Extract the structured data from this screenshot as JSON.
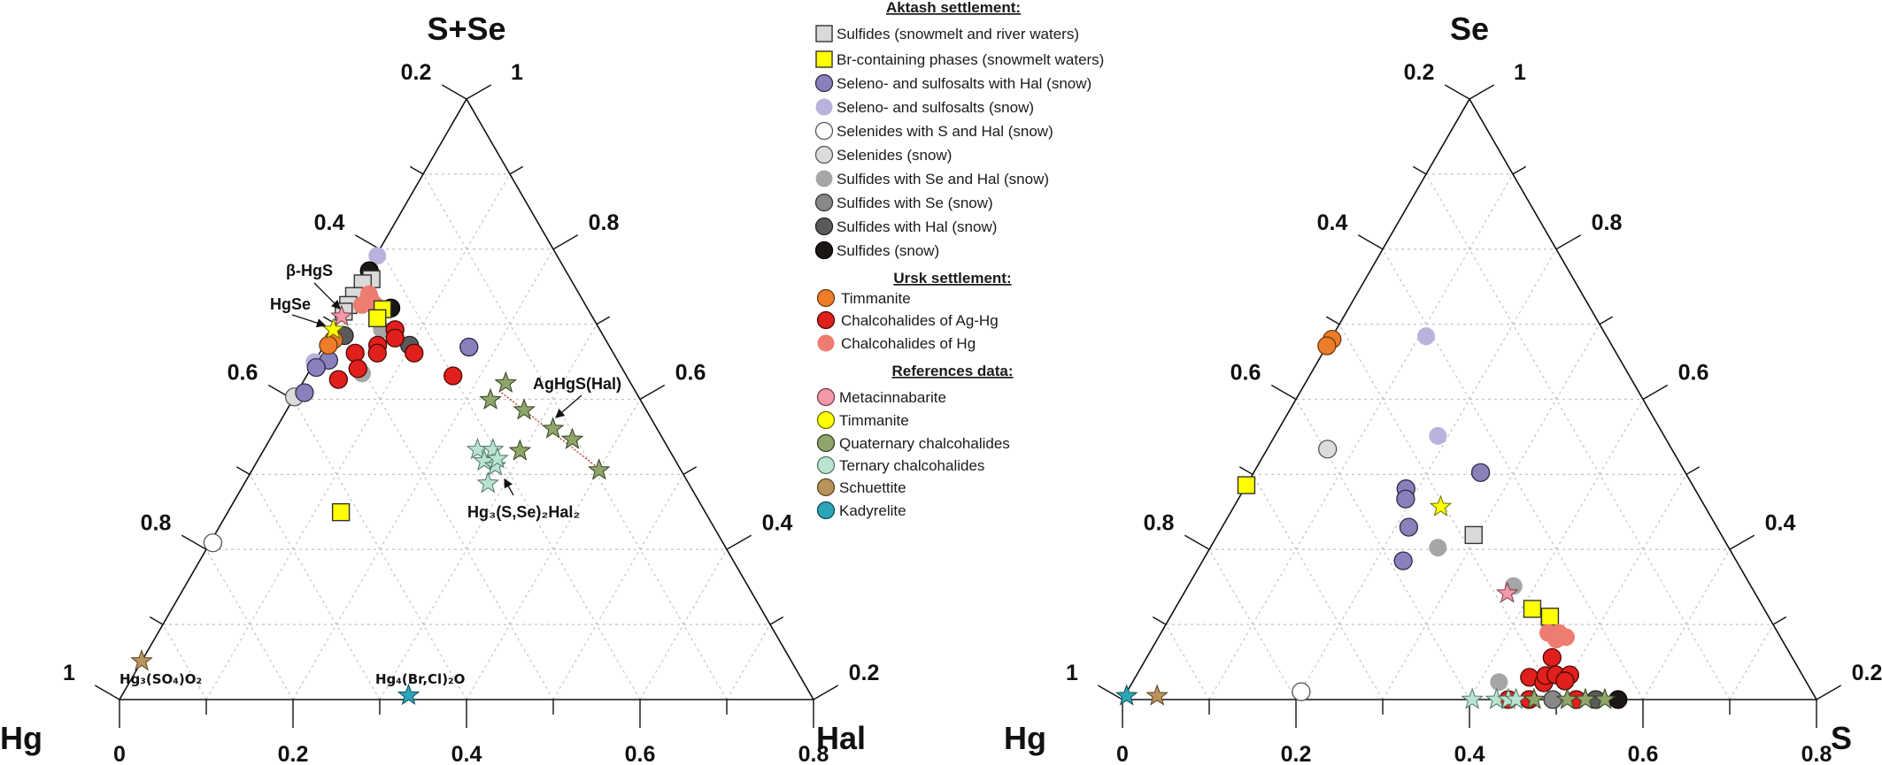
{
  "legend": {
    "groups": [
      {
        "title": "Aktash settlement:",
        "items": [
          {
            "id": "A1",
            "label": "Sulfides (snowmelt and river waters)"
          },
          {
            "id": "A2",
            "label": "Br-containing phases (snowmelt waters)"
          },
          {
            "id": "A3",
            "label": "Seleno- and sulfosalts with Hal (snow)"
          },
          {
            "id": "A4",
            "label": "Seleno- and sulfosalts (snow)"
          },
          {
            "id": "A5",
            "label": "Selenides with S and Hal (snow)"
          },
          {
            "id": "A6",
            "label": "Selenides (snow)"
          },
          {
            "id": "A7",
            "label": "Sulfides with Se and Hal (snow)"
          },
          {
            "id": "A8",
            "label": "Sulfides with Se (snow)"
          },
          {
            "id": "A9",
            "label": "Sulfides with Hal (snow)"
          },
          {
            "id": "A10",
            "label": "Sulfides (snow)"
          }
        ]
      },
      {
        "title": "Ursk settlement:",
        "items": [
          {
            "id": "U1",
            "label": "Timmanite"
          },
          {
            "id": "U2",
            "label": "Chalcohalides of Ag-Hg"
          },
          {
            "id": "U3",
            "label": "Chalcohalides of Hg"
          }
        ]
      },
      {
        "title": "References data:",
        "items": [
          {
            "id": "R1",
            "label": "Metacinnabarite"
          },
          {
            "id": "R2",
            "label": "Timmanite"
          },
          {
            "id": "R3",
            "label": "Quaternary chalcohalides"
          },
          {
            "id": "R4",
            "label": "Ternary chalcohalides"
          },
          {
            "id": "R5",
            "label": "Schuettite"
          },
          {
            "id": "R6",
            "label": "Kadyrelite"
          }
        ]
      }
    ]
  },
  "series_style": {
    "A1": {
      "marker": "square",
      "fill": "#d9d9d9",
      "stroke": "#333333"
    },
    "A2": {
      "marker": "square",
      "fill": "#ffff00",
      "stroke": "#333333"
    },
    "A3": {
      "marker": "circle",
      "fill": "#8a80bb",
      "stroke": "#2d2a45"
    },
    "A4": {
      "marker": "circle",
      "fill": "#b8b2dc",
      "stroke": "none"
    },
    "A5": {
      "marker": "circle",
      "fill": "#ffffff",
      "stroke": "#555555"
    },
    "A6": {
      "marker": "circle",
      "fill": "#dcdcdc",
      "stroke": "#555555"
    },
    "A7": {
      "marker": "circle",
      "fill": "#a6a6a6",
      "stroke": "none"
    },
    "A8": {
      "marker": "circle",
      "fill": "#888888",
      "stroke": "#333333"
    },
    "A9": {
      "marker": "circle",
      "fill": "#5a5a5a",
      "stroke": "#222222"
    },
    "A10": {
      "marker": "circle",
      "fill": "#1c1714",
      "stroke": "#000000"
    },
    "U1": {
      "marker": "circle",
      "fill": "#ee7d2a",
      "stroke": "#6b3a10"
    },
    "U2": {
      "marker": "circle",
      "fill": "#e0201c",
      "stroke": "#4a0806"
    },
    "U3": {
      "marker": "circle",
      "fill": "#ee7c70",
      "stroke": "none"
    },
    "R1": {
      "marker": "star",
      "fill": "#f29aa8",
      "stroke": "#7a3a44",
      "legend_marker": "circle"
    },
    "R2": {
      "marker": "star",
      "fill": "#ffff00",
      "stroke": "#6b6b00",
      "legend_marker": "circle"
    },
    "R3": {
      "marker": "star",
      "fill": "#8fa56a",
      "stroke": "#333f22",
      "legend_marker": "circle"
    },
    "R4": {
      "marker": "star",
      "fill": "#b9e4cf",
      "stroke": "#4f7565",
      "legend_marker": "circle"
    },
    "R5": {
      "marker": "star",
      "fill": "#b8935a",
      "stroke": "#5a4426",
      "legend_marker": "circle"
    },
    "R6": {
      "marker": "star",
      "fill": "#2ba6b8",
      "stroke": "#124a52",
      "legend_marker": "circle"
    }
  },
  "chart_data": [
    {
      "type": "scatter",
      "subtype": "ternary",
      "corners": {
        "top": "S+Se",
        "left": "Hg",
        "right": "Hal"
      },
      "point_format": "[top_fraction, right_fraction] of the plotted triangle",
      "grid": true,
      "left_axis_ticks": [
        "1",
        "0.8",
        "0.6",
        "0.4",
        "0.2"
      ],
      "right_axis_ticks": [
        "0.2",
        "0.4",
        "0.6",
        "0.8",
        "1"
      ],
      "bottom_axis_ticks": [
        "0",
        "0.2",
        "0.4",
        "0.6",
        "0.8"
      ],
      "annotations": [
        {
          "id": "bhgs",
          "text": "β-HgS"
        },
        {
          "id": "hgse",
          "text": "HgSe"
        },
        {
          "id": "aghgs",
          "text": "AgHgS(Hal)"
        },
        {
          "id": "hg3sse",
          "text": "Hg₃(S,Se)₂Hal₂"
        },
        {
          "id": "hg3so4",
          "text": "Hg₃(SO₄)O₂"
        },
        {
          "id": "hg4brcl",
          "text": "Hg₄(Br,Cl)₂O"
        }
      ],
      "tie_line": [
        [
          0.511,
          0.295
        ],
        [
          0.385,
          0.498
        ]
      ],
      "series": [
        {
          "id": "A6",
          "points": [
            [
              0.504,
              0.0
            ]
          ]
        },
        {
          "id": "A5",
          "points": [
            [
              0.261,
              0.004
            ]
          ]
        },
        {
          "id": "A4",
          "points": [
            [
              0.739,
              0.002
            ],
            [
              0.562,
              0.0
            ]
          ]
        },
        {
          "id": "A3",
          "points": [
            [
              0.587,
              0.21
            ],
            [
              0.565,
              0.019
            ],
            [
              0.553,
              0.007
            ],
            [
              0.511,
              0.011
            ]
          ]
        },
        {
          "id": "A7",
          "points": [
            [
              0.616,
              0.07
            ],
            [
              0.543,
              0.078
            ]
          ]
        },
        {
          "id": "A10",
          "points": [
            [
              0.714,
              0.003
            ],
            [
              0.652,
              0.065
            ]
          ]
        },
        {
          "id": "A9",
          "points": [
            [
              0.606,
              0.021
            ],
            [
              0.59,
              0.123
            ]
          ]
        },
        {
          "id": "A1",
          "points": [
            [
              0.7,
              0.013
            ],
            [
              0.693,
              0.004
            ],
            [
              0.672,
              0.002
            ],
            [
              0.657,
              0.001
            ],
            [
              0.646,
              0.0
            ]
          ]
        },
        {
          "id": "U3",
          "points": [
            [
              0.675,
              0.022
            ],
            [
              0.657,
              0.021
            ],
            [
              0.657,
              0.04
            ],
            [
              0.665,
              0.03
            ]
          ]
        },
        {
          "id": "A2",
          "points": [
            [
              0.65,
              0.054
            ],
            [
              0.635,
              0.054
            ],
            [
              0.312,
              0.163
            ]
          ]
        },
        {
          "id": "U2",
          "points": [
            [
              0.616,
              0.089
            ],
            [
              0.602,
              0.096
            ],
            [
              0.59,
              0.077
            ],
            [
              0.577,
              0.083
            ],
            [
              0.577,
              0.051
            ],
            [
              0.551,
              0.068
            ],
            [
              0.533,
              0.049
            ],
            [
              0.577,
              0.136
            ],
            [
              0.539,
              0.211
            ]
          ]
        },
        {
          "id": "U1",
          "points": [
            [
              0.599,
              0.009
            ],
            [
              0.59,
              0.006
            ]
          ]
        },
        {
          "id": "R3",
          "points": [
            [
              0.527,
              0.293
            ],
            [
              0.499,
              0.285
            ],
            [
              0.482,
              0.342
            ],
            [
              0.451,
              0.399
            ],
            [
              0.433,
              0.436
            ],
            [
              0.414,
              0.37
            ],
            [
              0.382,
              0.5
            ]
          ]
        },
        {
          "id": "R4",
          "points": [
            [
              0.416,
              0.308
            ],
            [
              0.416,
              0.33
            ],
            [
              0.397,
              0.327
            ],
            [
              0.389,
              0.347
            ],
            [
              0.36,
              0.351
            ],
            [
              0.401,
              0.344
            ]
          ]
        },
        {
          "id": "R1",
          "points": [
            [
              0.638,
              0.001
            ]
          ]
        },
        {
          "id": "R2",
          "points": [
            [
              0.616,
              0.0
            ]
          ]
        },
        {
          "id": "R5",
          "points": [
            [
              0.064,
              0.0
            ]
          ]
        },
        {
          "id": "R6",
          "points": [
            [
              0.007,
              0.413
            ]
          ]
        }
      ]
    },
    {
      "type": "scatter",
      "subtype": "ternary",
      "corners": {
        "top": "Se",
        "left": "Hg",
        "right": "S"
      },
      "point_format": "[top_fraction, right_fraction] of the plotted triangle",
      "grid": true,
      "left_axis_ticks": [
        "1",
        "0.8",
        "0.6",
        "0.4",
        "0.2"
      ],
      "right_axis_ticks": [
        "0.2",
        "0.4",
        "0.6",
        "0.8",
        "1"
      ],
      "bottom_axis_ticks": [
        "0",
        "0.2",
        "0.4",
        "0.6",
        "0.8"
      ],
      "series": [
        {
          "id": "A6",
          "points": [
            [
              0.417,
              0.087
            ]
          ]
        },
        {
          "id": "A5",
          "points": [
            [
              0.013,
              0.251
            ]
          ]
        },
        {
          "id": "A4",
          "points": [
            [
              0.605,
              0.135
            ],
            [
              0.439,
              0.235
            ]
          ]
        },
        {
          "id": "A3",
          "points": [
            [
              0.378,
              0.327
            ],
            [
              0.351,
              0.233
            ],
            [
              0.334,
              0.241
            ],
            [
              0.287,
              0.269
            ],
            [
              0.231,
              0.289
            ]
          ]
        },
        {
          "id": "A7",
          "points": [
            [
              0.253,
              0.328
            ],
            [
              0.189,
              0.469
            ],
            [
              0.129,
              0.55
            ],
            [
              0.029,
              0.528
            ]
          ]
        },
        {
          "id": "A1",
          "points": [
            [
              0.274,
              0.369
            ]
          ]
        },
        {
          "id": "A2",
          "points": [
            [
              0.357,
              0.0
            ],
            [
              0.151,
              0.515
            ],
            [
              0.138,
              0.547
            ]
          ]
        },
        {
          "id": "U3",
          "points": [
            [
              0.111,
              0.558
            ],
            [
              0.111,
              0.573
            ],
            [
              0.1,
              0.575
            ],
            [
              0.104,
              0.587
            ]
          ]
        },
        {
          "id": "U2",
          "points": [
            [
              0.07,
              0.584
            ],
            [
              0.037,
              0.568
            ],
            [
              0.028,
              0.593
            ],
            [
              0.04,
              0.59
            ],
            [
              0.041,
              0.604
            ],
            [
              0.041,
              0.624
            ],
            [
              0.031,
              0.622
            ],
            [
              0.0,
              0.556
            ],
            [
              0.0,
              0.586
            ],
            [
              0.0,
              0.654
            ]
          ]
        },
        {
          "id": "U1",
          "points": [
            [
              0.6,
              0.002
            ],
            [
              0.589,
              0.0
            ]
          ]
        },
        {
          "id": "A8",
          "points": [
            [
              0.0,
              0.62
            ]
          ]
        },
        {
          "id": "A9",
          "points": [
            [
              0.0,
              0.682
            ]
          ]
        },
        {
          "id": "A10",
          "points": [
            [
              0.0,
              0.714
            ]
          ]
        },
        {
          "id": "R4",
          "points": [
            [
              0.0,
              0.504
            ],
            [
              0.0,
              0.539
            ],
            [
              0.0,
              0.556
            ],
            [
              0.0,
              0.567
            ]
          ]
        },
        {
          "id": "R3",
          "points": [
            [
              0.0,
              0.593
            ],
            [
              0.0,
              0.641
            ],
            [
              0.0,
              0.667
            ],
            [
              0.0,
              0.695
            ]
          ]
        },
        {
          "id": "R1",
          "points": [
            [
              0.177,
              0.466
            ]
          ]
        },
        {
          "id": "R2",
          "points": [
            [
              0.321,
              0.298
            ]
          ]
        },
        {
          "id": "R6",
          "points": [
            [
              0.006,
              0.003
            ]
          ]
        },
        {
          "id": "R5",
          "points": [
            [
              0.006,
              0.047
            ]
          ]
        }
      ]
    }
  ]
}
